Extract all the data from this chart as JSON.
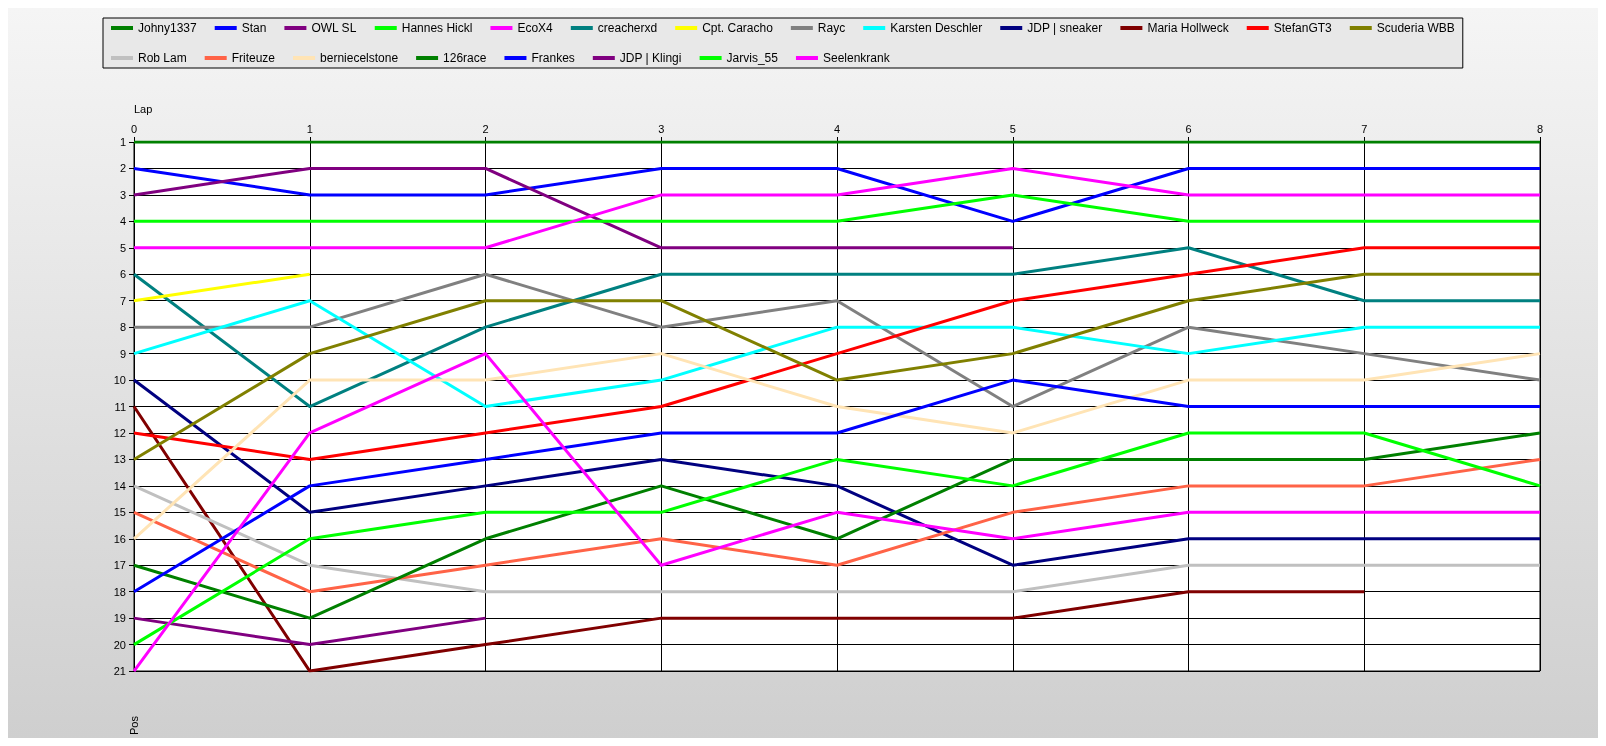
{
  "chart_data": {
    "type": "line",
    "xlabel": "Lap",
    "ylabel": "Pos",
    "x": [
      0,
      1,
      2,
      3,
      4,
      5,
      6,
      7,
      8
    ],
    "xlim": [
      0,
      8
    ],
    "xticks": [
      0,
      1,
      2,
      3,
      4,
      5,
      6,
      7,
      8
    ],
    "ylim": [
      21,
      1
    ],
    "yticks": [
      1,
      2,
      3,
      4,
      5,
      6,
      7,
      8,
      9,
      10,
      11,
      12,
      13,
      14,
      15,
      16,
      17,
      18,
      19,
      20,
      21
    ],
    "grid": true,
    "legend": "top",
    "marker": "none",
    "line_style": "solid",
    "series": [
      {
        "name": "Johny1337",
        "color": "#008000",
        "values": [
          1,
          1,
          1,
          1,
          1,
          1,
          1,
          1,
          1
        ]
      },
      {
        "name": "Stan",
        "color": "#0000ff",
        "values": [
          2,
          3,
          3,
          2,
          2,
          4,
          2,
          2,
          2
        ]
      },
      {
        "name": "OWL SL",
        "color": "#800080",
        "values": [
          3,
          2,
          2,
          5,
          5,
          5,
          null,
          null,
          null
        ]
      },
      {
        "name": "Hannes Hickl",
        "color": "#00ff00",
        "values": [
          4,
          4,
          4,
          4,
          4,
          3,
          4,
          4,
          4
        ]
      },
      {
        "name": "EcoX4",
        "color": "#ff00ff",
        "values": [
          5,
          5,
          5,
          3,
          3,
          2,
          3,
          3,
          3
        ]
      },
      {
        "name": "creacherxd",
        "color": "#008080",
        "values": [
          6,
          11,
          8,
          6,
          6,
          6,
          5,
          7,
          7
        ]
      },
      {
        "name": "Cpt. Caracho",
        "color": "#ffff00",
        "values": [
          7,
          6,
          null,
          null,
          null,
          null,
          null,
          null,
          null
        ]
      },
      {
        "name": "Rayc",
        "color": "#808080",
        "values": [
          8,
          8,
          6,
          8,
          7,
          11,
          8,
          9,
          10
        ]
      },
      {
        "name": "Karsten Deschler",
        "color": "#00ffff",
        "values": [
          9,
          7,
          11,
          10,
          8,
          8,
          9,
          8,
          8
        ]
      },
      {
        "name": "JDP | sneaker",
        "color": "#000080",
        "values": [
          10,
          15,
          14,
          13,
          14,
          17,
          16,
          16,
          16
        ]
      },
      {
        "name": "Maria Hollweck",
        "color": "#800000",
        "values": [
          11,
          21,
          20,
          19,
          19,
          19,
          18,
          18,
          null
        ]
      },
      {
        "name": "StefanGT3",
        "color": "#ff0000",
        "values": [
          12,
          13,
          12,
          11,
          9,
          7,
          6,
          5,
          5
        ]
      },
      {
        "name": "Scuderia WBB",
        "color": "#808000",
        "values": [
          13,
          9,
          7,
          7,
          10,
          9,
          7,
          6,
          6
        ]
      },
      {
        "name": "Rob Lam",
        "color": "#c0c0c0",
        "values": [
          14,
          17,
          18,
          18,
          18,
          18,
          17,
          17,
          17
        ]
      },
      {
        "name": "Friteuze",
        "color": "#ff6347",
        "values": [
          15,
          18,
          17,
          16,
          17,
          15,
          14,
          14,
          13
        ]
      },
      {
        "name": "berniecelstone",
        "color": "#ffe4b5",
        "values": [
          16,
          10,
          10,
          9,
          11,
          12,
          10,
          10,
          9
        ]
      },
      {
        "name": "126race",
        "color": "#008000",
        "values": [
          17,
          19,
          16,
          14,
          16,
          13,
          13,
          13,
          12
        ]
      },
      {
        "name": "Frankes",
        "color": "#0000ff",
        "values": [
          18,
          14,
          13,
          12,
          12,
          10,
          11,
          11,
          11
        ]
      },
      {
        "name": "JDP | Klingi",
        "color": "#800080",
        "values": [
          19,
          20,
          19,
          null,
          null,
          null,
          null,
          null,
          null
        ]
      },
      {
        "name": "Jarvis_55",
        "color": "#00ff00",
        "values": [
          20,
          16,
          15,
          15,
          13,
          14,
          12,
          12,
          14
        ]
      },
      {
        "name": "Seelenkrank",
        "color": "#ff00ff",
        "values": [
          21,
          12,
          9,
          17,
          15,
          16,
          15,
          15,
          15
        ]
      }
    ]
  }
}
